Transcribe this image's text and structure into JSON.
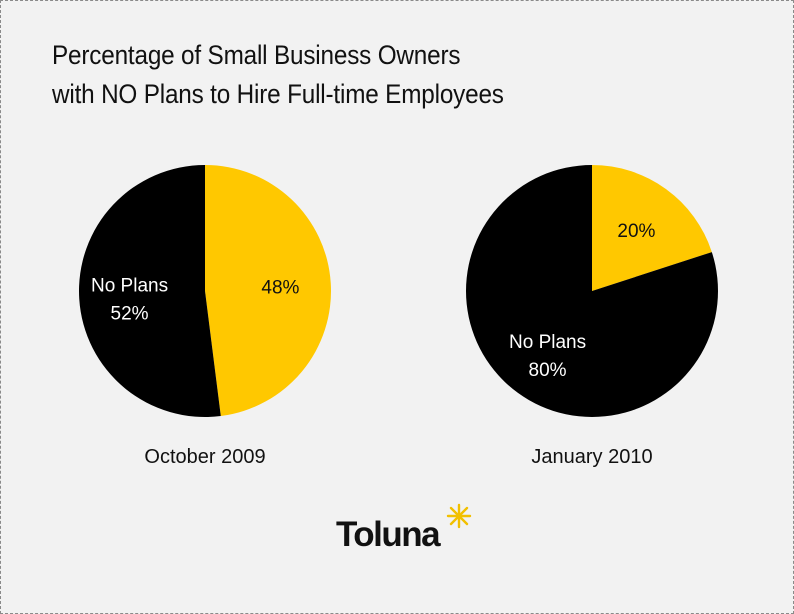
{
  "title": {
    "line1": "Percentage of Small Business Owners",
    "line2": "with NO Plans to Hire Full-time Employees"
  },
  "colors": {
    "no_plans": "#000000",
    "plans": "#ffc800",
    "background": "#f2f2f2"
  },
  "chart_data": [
    {
      "type": "pie",
      "title": "October 2009",
      "slices": [
        {
          "label": "No Plans",
          "value": 52,
          "value_label": "52%",
          "color": "#000000"
        },
        {
          "label": "",
          "value": 48,
          "value_label": "48%",
          "color": "#ffc800"
        }
      ]
    },
    {
      "type": "pie",
      "title": "January 2010",
      "slices": [
        {
          "label": "No Plans",
          "value": 80,
          "value_label": "80%",
          "color": "#000000"
        },
        {
          "label": "",
          "value": 20,
          "value_label": "20%",
          "color": "#ffc800"
        }
      ]
    }
  ],
  "logo": {
    "text": "Toluna"
  }
}
